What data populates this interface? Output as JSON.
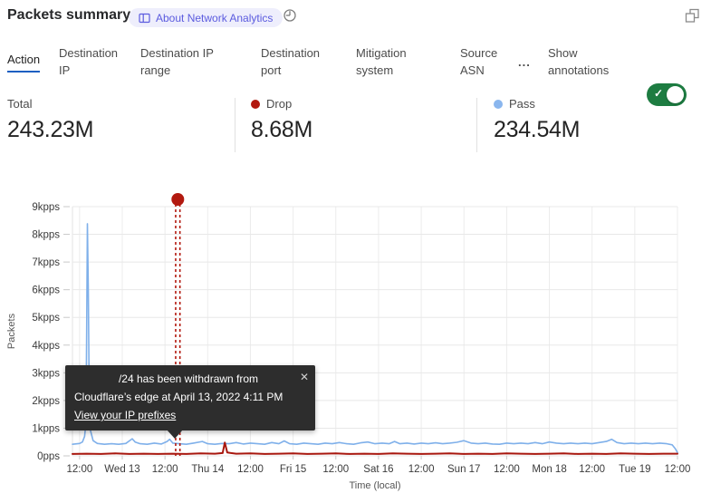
{
  "header": {
    "title": "Packets summary",
    "about_badge": "About Network Analytics"
  },
  "tabs": {
    "items": [
      {
        "label": "Action",
        "active": true
      },
      {
        "label": "Destination IP",
        "active": false
      },
      {
        "label": "Destination IP range",
        "active": false
      },
      {
        "label": "Destination port",
        "active": false
      },
      {
        "label": "Mitigation system",
        "active": false
      },
      {
        "label": "Source ASN",
        "active": false
      }
    ],
    "more_label": "...",
    "show_annotations_label": "Show annotations",
    "annotations_enabled": true,
    "active_underline_color": "#1d5fc2",
    "toggle_color": "#1d7c41"
  },
  "stats": {
    "items": [
      {
        "label": "Total",
        "value": "243.23M",
        "dot_color": null
      },
      {
        "label": "Drop",
        "value": "8.68M",
        "dot_color": "#b2190f"
      },
      {
        "label": "Pass",
        "value": "234.54M",
        "dot_color": "#8ab6ee"
      }
    ]
  },
  "chart_data": {
    "type": "line",
    "title": "Packets summary",
    "xlabel": "Time (local)",
    "ylabel": "Packets",
    "grid": true,
    "x_unit": "hours from first tick (Apr 12 12:00 local)",
    "xlim": [
      -2,
      168
    ],
    "ylim": [
      0,
      9
    ],
    "x_ticks": [
      "12:00",
      "Wed 13",
      "12:00",
      "Thu 14",
      "12:00",
      "Fri 15",
      "12:00",
      "Sat 16",
      "12:00",
      "Sun 17",
      "12:00",
      "Mon 18",
      "12:00",
      "Tue 19",
      "12:00"
    ],
    "x_tick_hours": [
      0,
      12,
      24,
      36,
      48,
      60,
      72,
      84,
      96,
      108,
      120,
      132,
      144,
      156,
      168
    ],
    "y_ticks": [
      "0pps",
      "1kpps",
      "2kpps",
      "3kpps",
      "4kpps",
      "5kpps",
      "6kpps",
      "7kpps",
      "8kpps",
      "9kpps"
    ],
    "series": [
      {
        "name": "Pass",
        "color": "#7fb0ea",
        "width": 1.6,
        "points": [
          [
            -2,
            0.42
          ],
          [
            0,
            0.45
          ],
          [
            0.8,
            0.5
          ],
          [
            1.4,
            0.7
          ],
          [
            1.8,
            1.2
          ],
          [
            2.0,
            4.5
          ],
          [
            2.2,
            8.38
          ],
          [
            2.45,
            6.0
          ],
          [
            2.7,
            2.2
          ],
          [
            3.1,
            0.9
          ],
          [
            3.8,
            0.55
          ],
          [
            5,
            0.45
          ],
          [
            7,
            0.42
          ],
          [
            9,
            0.44
          ],
          [
            11,
            0.42
          ],
          [
            13,
            0.45
          ],
          [
            14.8,
            0.62
          ],
          [
            15.6,
            0.5
          ],
          [
            17,
            0.44
          ],
          [
            19,
            0.42
          ],
          [
            21,
            0.46
          ],
          [
            23,
            0.43
          ],
          [
            24.6,
            0.52
          ],
          [
            25.3,
            0.6
          ],
          [
            26.2,
            0.46
          ],
          [
            28,
            0.44
          ],
          [
            30,
            0.42
          ],
          [
            32,
            0.46
          ],
          [
            34.5,
            0.52
          ],
          [
            36,
            0.44
          ],
          [
            38,
            0.42
          ],
          [
            40,
            0.45
          ],
          [
            42,
            0.44
          ],
          [
            44,
            0.48
          ],
          [
            46,
            0.43
          ],
          [
            48,
            0.46
          ],
          [
            50,
            0.44
          ],
          [
            52,
            0.42
          ],
          [
            54,
            0.48
          ],
          [
            56,
            0.44
          ],
          [
            57.5,
            0.54
          ],
          [
            59,
            0.44
          ],
          [
            61,
            0.42
          ],
          [
            63,
            0.46
          ],
          [
            65,
            0.44
          ],
          [
            67,
            0.42
          ],
          [
            69,
            0.46
          ],
          [
            71,
            0.44
          ],
          [
            73,
            0.48
          ],
          [
            75,
            0.44
          ],
          [
            77,
            0.42
          ],
          [
            79,
            0.47
          ],
          [
            81,
            0.5
          ],
          [
            83,
            0.44
          ],
          [
            85,
            0.46
          ],
          [
            87,
            0.44
          ],
          [
            88.5,
            0.52
          ],
          [
            90,
            0.44
          ],
          [
            92,
            0.46
          ],
          [
            94,
            0.43
          ],
          [
            96,
            0.46
          ],
          [
            98,
            0.44
          ],
          [
            100,
            0.47
          ],
          [
            102,
            0.44
          ],
          [
            104,
            0.46
          ],
          [
            106,
            0.49
          ],
          [
            108,
            0.55
          ],
          [
            110,
            0.46
          ],
          [
            112,
            0.44
          ],
          [
            114,
            0.46
          ],
          [
            116,
            0.43
          ],
          [
            118,
            0.42
          ],
          [
            120,
            0.46
          ],
          [
            122,
            0.44
          ],
          [
            124,
            0.46
          ],
          [
            126,
            0.44
          ],
          [
            128,
            0.48
          ],
          [
            130,
            0.44
          ],
          [
            132,
            0.5
          ],
          [
            134,
            0.46
          ],
          [
            136,
            0.44
          ],
          [
            138,
            0.46
          ],
          [
            140,
            0.44
          ],
          [
            142,
            0.46
          ],
          [
            144,
            0.44
          ],
          [
            146,
            0.48
          ],
          [
            148,
            0.52
          ],
          [
            149.5,
            0.6
          ],
          [
            151,
            0.48
          ],
          [
            153,
            0.44
          ],
          [
            155,
            0.46
          ],
          [
            157,
            0.44
          ],
          [
            159,
            0.46
          ],
          [
            161,
            0.44
          ],
          [
            163,
            0.46
          ],
          [
            165,
            0.44
          ],
          [
            166.5,
            0.4
          ],
          [
            167.4,
            0.26
          ],
          [
            168,
            0.12
          ]
        ]
      },
      {
        "name": "Drop",
        "color": "#a8170e",
        "width": 2,
        "points": [
          [
            -2,
            0.07
          ],
          [
            2,
            0.08
          ],
          [
            6,
            0.07
          ],
          [
            10,
            0.09
          ],
          [
            14,
            0.07
          ],
          [
            18,
            0.08
          ],
          [
            22,
            0.07
          ],
          [
            26,
            0.08
          ],
          [
            30,
            0.07
          ],
          [
            34,
            0.09
          ],
          [
            38,
            0.08
          ],
          [
            40.2,
            0.1
          ],
          [
            40.8,
            0.48
          ],
          [
            41.5,
            0.12
          ],
          [
            44,
            0.08
          ],
          [
            48,
            0.09
          ],
          [
            52,
            0.07
          ],
          [
            56,
            0.08
          ],
          [
            60,
            0.09
          ],
          [
            64,
            0.07
          ],
          [
            68,
            0.08
          ],
          [
            72,
            0.09
          ],
          [
            76,
            0.07
          ],
          [
            80,
            0.08
          ],
          [
            84,
            0.07
          ],
          [
            88,
            0.09
          ],
          [
            92,
            0.08
          ],
          [
            96,
            0.07
          ],
          [
            100,
            0.08
          ],
          [
            104,
            0.09
          ],
          [
            108,
            0.07
          ],
          [
            112,
            0.08
          ],
          [
            116,
            0.07
          ],
          [
            120,
            0.09
          ],
          [
            124,
            0.08
          ],
          [
            128,
            0.07
          ],
          [
            132,
            0.08
          ],
          [
            136,
            0.09
          ],
          [
            140,
            0.07
          ],
          [
            144,
            0.08
          ],
          [
            148,
            0.07
          ],
          [
            152,
            0.09
          ],
          [
            156,
            0.08
          ],
          [
            160,
            0.07
          ],
          [
            164,
            0.08
          ],
          [
            168,
            0.08
          ]
        ]
      }
    ],
    "annotation": {
      "lines_hours": [
        27.0,
        28.2
      ],
      "line_color": "#b2190f",
      "marker_color": "#b2190f",
      "tooltip": {
        "line1": "/24 has been withdrawn from",
        "line2": "Cloudflare’s edge at April 13, 2022 4:11 PM",
        "link": "View your IP prefixes",
        "close": "✕"
      }
    }
  }
}
